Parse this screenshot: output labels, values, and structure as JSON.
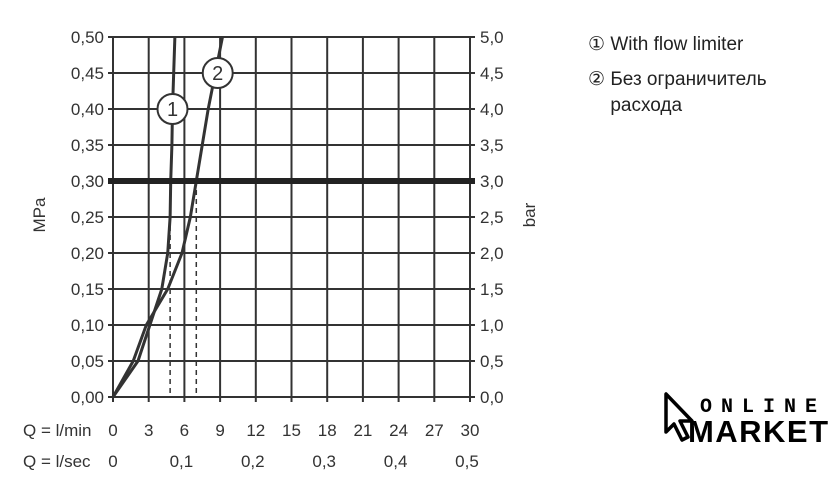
{
  "chart_data": {
    "type": "line",
    "xlabel_rows": [
      {
        "label": "Q = l/min",
        "ticks": [
          "0",
          "3",
          "6",
          "9",
          "12",
          "15",
          "18",
          "21",
          "24",
          "27",
          "30"
        ],
        "values": [
          0,
          3,
          6,
          9,
          12,
          15,
          18,
          21,
          24,
          27,
          30
        ]
      },
      {
        "label": "Q = l/sec",
        "ticks": [
          "0",
          "0,1",
          "0,2",
          "0,3",
          "0,4",
          "0,5"
        ],
        "values": [
          0,
          6,
          12,
          18,
          24,
          30
        ]
      }
    ],
    "ylabel_left": "MPa",
    "ylabel_right": "bar",
    "xlim": [
      0,
      30
    ],
    "ylim": [
      0,
      0.5
    ],
    "yticks_left": [
      "0,00",
      "0,05",
      "0,10",
      "0,15",
      "0,20",
      "0,25",
      "0,30",
      "0,35",
      "0,40",
      "0,45",
      "0,50"
    ],
    "yticks_right": [
      "0,0",
      "0,5",
      "1,0",
      "1,5",
      "2,0",
      "2,5",
      "3,0",
      "3,5",
      "4,0",
      "4,5",
      "5,0"
    ],
    "grid": true,
    "reference_line_y": 0.3,
    "dashed_markers_x": [
      4.8,
      7.0
    ],
    "series": [
      {
        "name": "1",
        "x": [
          0,
          2.1,
          3.1,
          4.1,
          4.6,
          4.8,
          4.85,
          4.95,
          5.0,
          5.1,
          5.2
        ],
        "y": [
          0,
          0.05,
          0.1,
          0.15,
          0.2,
          0.25,
          0.3,
          0.35,
          0.4,
          0.45,
          0.5
        ],
        "marker_label": "1",
        "marker_at": [
          5.0,
          0.4
        ]
      },
      {
        "name": "2",
        "x": [
          0,
          1.7,
          2.8,
          4.6,
          5.8,
          6.5,
          7.0,
          7.5,
          8.0,
          8.6,
          9.2
        ],
        "y": [
          0,
          0.05,
          0.1,
          0.15,
          0.2,
          0.25,
          0.3,
          0.35,
          0.4,
          0.45,
          0.5
        ],
        "marker_label": "2",
        "marker_at": [
          8.8,
          0.45
        ]
      }
    ],
    "legend": [
      {
        "symbol": "①",
        "text": "With flow limiter"
      },
      {
        "symbol": "②",
        "text": "Без ограничитель расхода"
      }
    ],
    "legend_position": "top-right",
    "color": "#333333"
  },
  "logo": {
    "line1": "ONLINE",
    "line2": "MARKET"
  }
}
